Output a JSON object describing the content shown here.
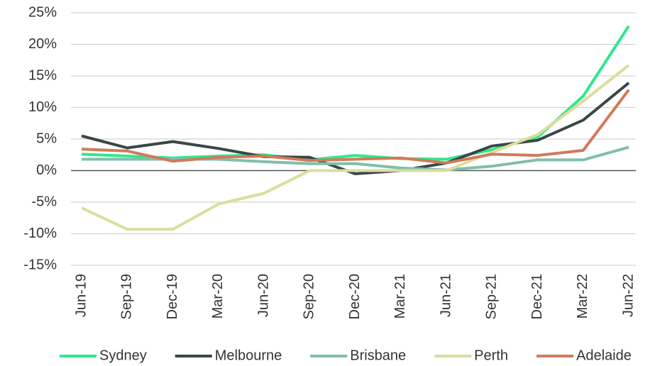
{
  "chart_data": {
    "type": "line",
    "categories": [
      "Jun-19",
      "Sep-19",
      "Dec-19",
      "Mar-20",
      "Jun-20",
      "Sep-20",
      "Dec-20",
      "Mar-21",
      "Jun-21",
      "Sep-21",
      "Dec-21",
      "Mar-22",
      "Jun-22"
    ],
    "series": [
      {
        "name": "Sydney",
        "color": "#2ee88c",
        "values": [
          2.6,
          2.3,
          2.0,
          2.3,
          2.5,
          1.7,
          2.4,
          1.9,
          1.8,
          3.3,
          5.3,
          11.8,
          22.9
        ]
      },
      {
        "name": "Melbourne",
        "color": "#3a4647",
        "values": [
          5.5,
          3.6,
          4.6,
          3.5,
          2.2,
          2.1,
          -0.5,
          0.0,
          1.2,
          3.9,
          4.8,
          8.0,
          13.9
        ]
      },
      {
        "name": "Brisbane",
        "color": "#7fbfaa",
        "values": [
          1.8,
          1.8,
          1.8,
          1.8,
          1.4,
          1.1,
          1.1,
          0.4,
          0.1,
          0.7,
          1.7,
          1.7,
          3.7
        ]
      },
      {
        "name": "Perth",
        "color": "#dcdc9e",
        "values": [
          -5.9,
          -9.3,
          -9.3,
          -5.3,
          -3.6,
          0.0,
          0.0,
          0.0,
          0.0,
          2.9,
          5.7,
          11.0,
          16.7
        ]
      },
      {
        "name": "Adelaide",
        "color": "#d07a5a",
        "values": [
          3.4,
          3.1,
          1.5,
          2.1,
          2.3,
          1.6,
          1.8,
          2.0,
          1.2,
          2.6,
          2.4,
          3.2,
          12.8
        ]
      }
    ],
    "ylim": [
      -15,
      25
    ],
    "yticks": [
      {
        "value": -15,
        "label": "-15%"
      },
      {
        "value": -10,
        "label": "-10%"
      },
      {
        "value": -5,
        "label": "-5%"
      },
      {
        "value": 0,
        "label": "0%"
      },
      {
        "value": 5,
        "label": "5%"
      },
      {
        "value": 10,
        "label": "10%"
      },
      {
        "value": 15,
        "label": "15%"
      },
      {
        "value": 20,
        "label": "20%"
      },
      {
        "value": 25,
        "label": "25%"
      }
    ],
    "grid": true,
    "legend": "bottom"
  }
}
